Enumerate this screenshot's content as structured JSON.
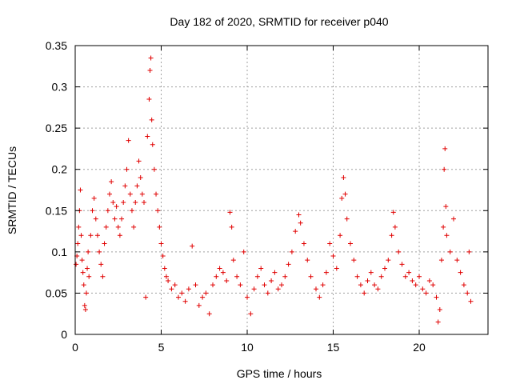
{
  "chart_data": {
    "type": "scatter",
    "title": "Day 182 of 2020, SRMTID for receiver p040",
    "xlabel": "GPS time / hours",
    "ylabel": "SRMTID / TECUs",
    "xlim": [
      0,
      24
    ],
    "ylim": [
      0,
      0.35
    ],
    "xticks": [
      0,
      5,
      10,
      15,
      20
    ],
    "xtick_labels": [
      "0",
      "5",
      "10",
      "15",
      "20"
    ],
    "yticks": [
      0,
      0.05,
      0.1,
      0.15,
      0.2,
      0.25,
      0.3,
      0.35
    ],
    "ytick_labels": [
      "0",
      "0.05",
      "0.1",
      "0.15",
      "0.2",
      "0.25",
      "0.3",
      "0.35"
    ],
    "grid": true,
    "marker": "+",
    "color": "#e00000",
    "x_extent": [
      0,
      23.0
    ],
    "series": [
      {
        "name": "SRMTID",
        "points": [
          [
            0.05,
            0.085
          ],
          [
            0.1,
            0.095
          ],
          [
            0.15,
            0.11
          ],
          [
            0.2,
            0.13
          ],
          [
            0.25,
            0.15
          ],
          [
            0.3,
            0.175
          ],
          [
            0.35,
            0.12
          ],
          [
            0.4,
            0.09
          ],
          [
            0.45,
            0.075
          ],
          [
            0.5,
            0.06
          ],
          [
            0.55,
            0.035
          ],
          [
            0.6,
            0.03
          ],
          [
            0.65,
            0.05
          ],
          [
            0.7,
            0.08
          ],
          [
            0.75,
            0.1
          ],
          [
            0.8,
            0.07
          ],
          [
            0.9,
            0.12
          ],
          [
            1.0,
            0.15
          ],
          [
            1.1,
            0.165
          ],
          [
            1.2,
            0.14
          ],
          [
            1.3,
            0.12
          ],
          [
            1.4,
            0.1
          ],
          [
            1.5,
            0.085
          ],
          [
            1.6,
            0.07
          ],
          [
            1.7,
            0.11
          ],
          [
            1.8,
            0.13
          ],
          [
            1.9,
            0.15
          ],
          [
            2.0,
            0.17
          ],
          [
            2.1,
            0.185
          ],
          [
            2.2,
            0.16
          ],
          [
            2.3,
            0.14
          ],
          [
            2.4,
            0.155
          ],
          [
            2.5,
            0.13
          ],
          [
            2.6,
            0.12
          ],
          [
            2.7,
            0.14
          ],
          [
            2.8,
            0.16
          ],
          [
            2.9,
            0.18
          ],
          [
            3.0,
            0.2
          ],
          [
            3.1,
            0.235
          ],
          [
            3.2,
            0.17
          ],
          [
            3.3,
            0.15
          ],
          [
            3.4,
            0.13
          ],
          [
            3.5,
            0.16
          ],
          [
            3.6,
            0.18
          ],
          [
            3.7,
            0.21
          ],
          [
            3.8,
            0.19
          ],
          [
            3.9,
            0.17
          ],
          [
            4.0,
            0.16
          ],
          [
            4.1,
            0.045
          ],
          [
            4.2,
            0.24
          ],
          [
            4.3,
            0.285
          ],
          [
            4.35,
            0.32
          ],
          [
            4.4,
            0.335
          ],
          [
            4.45,
            0.26
          ],
          [
            4.5,
            0.23
          ],
          [
            4.6,
            0.2
          ],
          [
            4.7,
            0.17
          ],
          [
            4.8,
            0.15
          ],
          [
            4.9,
            0.13
          ],
          [
            5.0,
            0.11
          ],
          [
            5.1,
            0.095
          ],
          [
            5.2,
            0.08
          ],
          [
            5.3,
            0.07
          ],
          [
            5.4,
            0.065
          ],
          [
            5.6,
            0.055
          ],
          [
            5.8,
            0.06
          ],
          [
            6.0,
            0.045
          ],
          [
            6.2,
            0.05
          ],
          [
            6.4,
            0.04
          ],
          [
            6.6,
            0.055
          ],
          [
            6.8,
            0.107
          ],
          [
            7.0,
            0.06
          ],
          [
            7.2,
            0.035
          ],
          [
            7.4,
            0.045
          ],
          [
            7.6,
            0.05
          ],
          [
            7.8,
            0.025
          ],
          [
            8.0,
            0.06
          ],
          [
            8.2,
            0.07
          ],
          [
            8.4,
            0.08
          ],
          [
            8.6,
            0.075
          ],
          [
            8.8,
            0.065
          ],
          [
            9.0,
            0.148
          ],
          [
            9.1,
            0.13
          ],
          [
            9.2,
            0.09
          ],
          [
            9.4,
            0.07
          ],
          [
            9.6,
            0.06
          ],
          [
            9.8,
            0.1
          ],
          [
            10.0,
            0.045
          ],
          [
            10.2,
            0.025
          ],
          [
            10.4,
            0.055
          ],
          [
            10.6,
            0.07
          ],
          [
            10.8,
            0.08
          ],
          [
            11.0,
            0.06
          ],
          [
            11.2,
            0.05
          ],
          [
            11.4,
            0.065
          ],
          [
            11.6,
            0.075
          ],
          [
            11.8,
            0.055
          ],
          [
            12.0,
            0.06
          ],
          [
            12.2,
            0.07
          ],
          [
            12.4,
            0.085
          ],
          [
            12.6,
            0.1
          ],
          [
            12.8,
            0.125
          ],
          [
            13.0,
            0.145
          ],
          [
            13.1,
            0.135
          ],
          [
            13.3,
            0.11
          ],
          [
            13.5,
            0.09
          ],
          [
            13.7,
            0.07
          ],
          [
            14.0,
            0.055
          ],
          [
            14.2,
            0.045
          ],
          [
            14.4,
            0.06
          ],
          [
            14.6,
            0.075
          ],
          [
            14.8,
            0.11
          ],
          [
            15.0,
            0.095
          ],
          [
            15.2,
            0.08
          ],
          [
            15.4,
            0.12
          ],
          [
            15.5,
            0.165
          ],
          [
            15.6,
            0.19
          ],
          [
            15.7,
            0.17
          ],
          [
            15.8,
            0.14
          ],
          [
            16.0,
            0.11
          ],
          [
            16.2,
            0.09
          ],
          [
            16.4,
            0.07
          ],
          [
            16.6,
            0.06
          ],
          [
            16.8,
            0.05
          ],
          [
            17.0,
            0.065
          ],
          [
            17.2,
            0.075
          ],
          [
            17.4,
            0.06
          ],
          [
            17.6,
            0.055
          ],
          [
            17.8,
            0.07
          ],
          [
            18.0,
            0.08
          ],
          [
            18.2,
            0.09
          ],
          [
            18.4,
            0.12
          ],
          [
            18.5,
            0.148
          ],
          [
            18.6,
            0.13
          ],
          [
            18.8,
            0.1
          ],
          [
            19.0,
            0.085
          ],
          [
            19.2,
            0.07
          ],
          [
            19.4,
            0.075
          ],
          [
            19.6,
            0.065
          ],
          [
            19.8,
            0.06
          ],
          [
            20.0,
            0.07
          ],
          [
            20.2,
            0.055
          ],
          [
            20.4,
            0.05
          ],
          [
            20.6,
            0.065
          ],
          [
            20.8,
            0.06
          ],
          [
            21.0,
            0.045
          ],
          [
            21.1,
            0.015
          ],
          [
            21.2,
            0.03
          ],
          [
            21.3,
            0.09
          ],
          [
            21.4,
            0.13
          ],
          [
            21.45,
            0.2
          ],
          [
            21.5,
            0.225
          ],
          [
            21.55,
            0.155
          ],
          [
            21.6,
            0.12
          ],
          [
            21.8,
            0.1
          ],
          [
            22.0,
            0.14
          ],
          [
            22.2,
            0.09
          ],
          [
            22.4,
            0.075
          ],
          [
            22.6,
            0.06
          ],
          [
            22.8,
            0.05
          ],
          [
            22.9,
            0.1
          ],
          [
            23.0,
            0.04
          ]
        ]
      }
    ]
  }
}
